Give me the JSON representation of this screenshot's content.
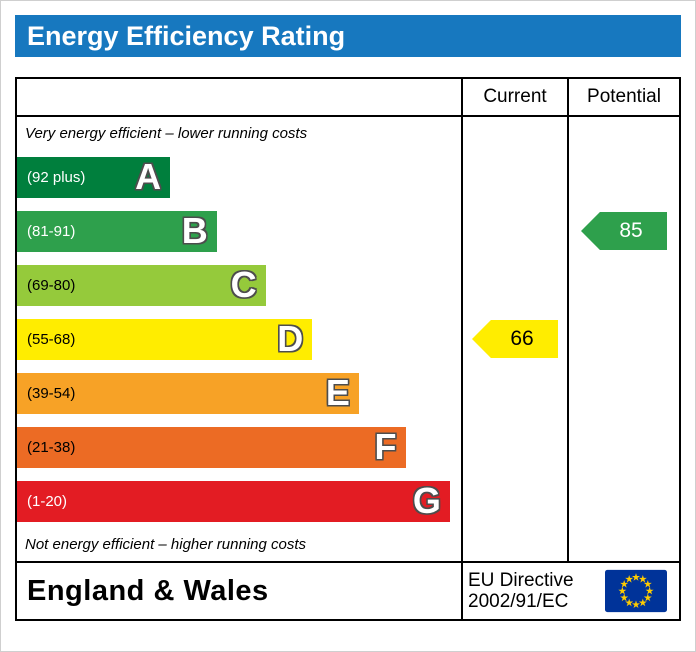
{
  "title": "Energy Efficiency Rating",
  "colors": {
    "title_bar": "#1778bf",
    "title_text": "#ffffff",
    "table_border": "#000000",
    "eu_flag_blue": "#003399",
    "eu_flag_stars": "#ffcc00"
  },
  "table": {
    "column_headers": [
      "Current",
      "Potential"
    ],
    "top_caption": "Very energy efficient – lower running costs",
    "bottom_caption": "Not energy efficient – higher running costs"
  },
  "chart_data": {
    "type": "bar",
    "subtype": "epc-energy-efficiency-rating",
    "title": "Energy Efficiency Rating",
    "bands": [
      {
        "letter": "A",
        "range": "(92 plus)",
        "min": 92,
        "max": 100,
        "color": "#007f3d",
        "range_text_color": "#ffffff",
        "width_pct": 34.5
      },
      {
        "letter": "B",
        "range": "(81-91)",
        "min": 81,
        "max": 91,
        "color": "#2ea04c",
        "range_text_color": "#ffffff",
        "width_pct": 45
      },
      {
        "letter": "C",
        "range": "(69-80)",
        "min": 69,
        "max": 80,
        "color": "#95ca3b",
        "range_text_color": "#000000",
        "width_pct": 56
      },
      {
        "letter": "D",
        "range": "(55-68)",
        "min": 55,
        "max": 68,
        "color": "#ffed00",
        "range_text_color": "#000000",
        "width_pct": 66.5
      },
      {
        "letter": "E",
        "range": "(39-54)",
        "min": 39,
        "max": 54,
        "color": "#f7a226",
        "range_text_color": "#000000",
        "width_pct": 77
      },
      {
        "letter": "F",
        "range": "(21-38)",
        "min": 21,
        "max": 38,
        "color": "#ec6b24",
        "range_text_color": "#000000",
        "width_pct": 87.5
      },
      {
        "letter": "G",
        "range": "(1-20)",
        "min": 1,
        "max": 20,
        "color": "#e31c23",
        "range_text_color": "#ffffff",
        "width_pct": 97.5
      }
    ],
    "current": {
      "value": 66,
      "band": "D",
      "color": "#ffed00",
      "text_color": "#000000"
    },
    "potential": {
      "value": 85,
      "band": "B",
      "color": "#2ea04c",
      "text_color": "#ffffff"
    }
  },
  "footer": {
    "region": "England & Wales",
    "directive_line1": "EU Directive",
    "directive_line2": "2002/91/EC"
  }
}
